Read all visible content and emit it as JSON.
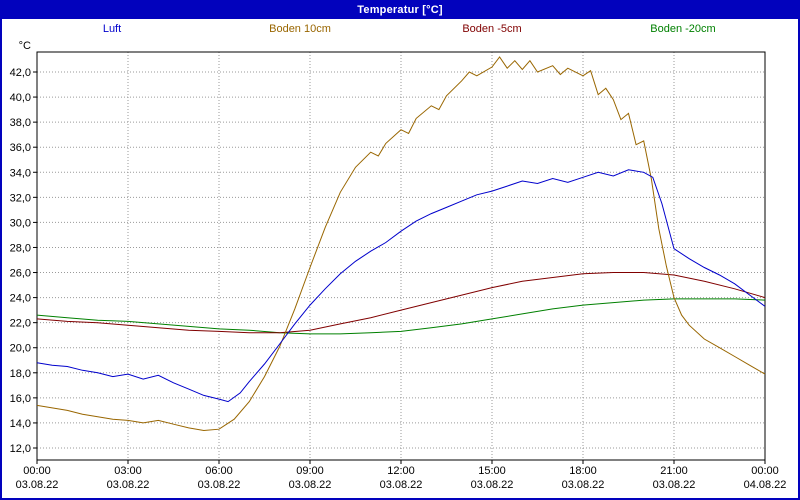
{
  "window_title": "Temperatur [°C]",
  "colors": {
    "frame_border": "#0202bd",
    "titlebar_bg": "#0202bd",
    "titlebar_text": "#ffffff",
    "plot_border": "#000000",
    "grid": "#9a9a9a",
    "background": "#ffffff"
  },
  "chart_data": {
    "type": "line",
    "title": "Temperatur [°C]",
    "legend_position": "top",
    "grid": {
      "style": "dotted",
      "color": "#9a9a9a"
    },
    "x_axis": {
      "unit": "hours",
      "range_hours": [
        0,
        24
      ],
      "tick_hours": [
        0,
        3,
        6,
        9,
        12,
        15,
        18,
        21,
        24
      ],
      "tick_labels": [
        "00:00",
        "03:00",
        "06:00",
        "09:00",
        "12:00",
        "15:00",
        "18:00",
        "21:00",
        "00:00"
      ],
      "date_labels": [
        "03.08.22",
        "03.08.22",
        "03.08.22",
        "03.08.22",
        "03.08.22",
        "03.08.22",
        "03.08.22",
        "03.08.22",
        "04.08.22"
      ]
    },
    "y_axis": {
      "label": "°C",
      "min": 12,
      "max": 42,
      "step": 2,
      "tick_labels": [
        "12,0",
        "14,0",
        "16,0",
        "18,0",
        "20,0",
        "22,0",
        "24,0",
        "26,0",
        "28,0",
        "30,0",
        "32,0",
        "34,0",
        "36,0",
        "38,0",
        "40,0",
        "42,0"
      ]
    },
    "series": [
      {
        "name": "Luft",
        "color": "#0000cc",
        "points": [
          [
            0,
            18.8
          ],
          [
            0.5,
            18.6
          ],
          [
            1,
            18.5
          ],
          [
            1.5,
            18.2
          ],
          [
            2,
            18.0
          ],
          [
            2.5,
            17.7
          ],
          [
            3,
            17.9
          ],
          [
            3.5,
            17.5
          ],
          [
            4,
            17.8
          ],
          [
            4.5,
            17.2
          ],
          [
            5,
            16.7
          ],
          [
            5.5,
            16.2
          ],
          [
            6,
            15.9
          ],
          [
            6.3,
            15.7
          ],
          [
            6.7,
            16.4
          ],
          [
            7,
            17.3
          ],
          [
            7.5,
            18.7
          ],
          [
            8,
            20.3
          ],
          [
            8.5,
            21.9
          ],
          [
            9,
            23.4
          ],
          [
            9.5,
            24.7
          ],
          [
            10,
            25.9
          ],
          [
            10.5,
            26.9
          ],
          [
            11,
            27.7
          ],
          [
            11.5,
            28.4
          ],
          [
            12,
            29.3
          ],
          [
            12.5,
            30.1
          ],
          [
            13,
            30.7
          ],
          [
            13.5,
            31.2
          ],
          [
            14,
            31.7
          ],
          [
            14.5,
            32.2
          ],
          [
            15,
            32.5
          ],
          [
            15.5,
            32.9
          ],
          [
            16,
            33.3
          ],
          [
            16.5,
            33.1
          ],
          [
            17,
            33.5
          ],
          [
            17.5,
            33.2
          ],
          [
            18,
            33.6
          ],
          [
            18.5,
            34.0
          ],
          [
            19,
            33.7
          ],
          [
            19.5,
            34.2
          ],
          [
            20,
            34.0
          ],
          [
            20.3,
            33.6
          ],
          [
            20.6,
            31.5
          ],
          [
            21,
            27.9
          ],
          [
            21.5,
            27.1
          ],
          [
            22,
            26.4
          ],
          [
            22.5,
            25.8
          ],
          [
            23,
            25.1
          ],
          [
            23.5,
            24.2
          ],
          [
            24,
            23.3
          ]
        ]
      },
      {
        "name": "Boden 10cm",
        "color": "#996600",
        "points": [
          [
            0,
            15.4
          ],
          [
            0.5,
            15.2
          ],
          [
            1,
            15.0
          ],
          [
            1.5,
            14.7
          ],
          [
            2,
            14.5
          ],
          [
            2.5,
            14.3
          ],
          [
            3,
            14.2
          ],
          [
            3.5,
            14.0
          ],
          [
            4,
            14.2
          ],
          [
            4.5,
            13.9
          ],
          [
            5,
            13.6
          ],
          [
            5.5,
            13.4
          ],
          [
            6,
            13.5
          ],
          [
            6.5,
            14.3
          ],
          [
            7,
            15.7
          ],
          [
            7.5,
            17.7
          ],
          [
            8,
            20.1
          ],
          [
            8.5,
            23.1
          ],
          [
            9,
            26.4
          ],
          [
            9.5,
            29.6
          ],
          [
            10,
            32.4
          ],
          [
            10.5,
            34.4
          ],
          [
            11,
            35.6
          ],
          [
            11.25,
            35.3
          ],
          [
            11.5,
            36.3
          ],
          [
            12,
            37.4
          ],
          [
            12.25,
            37.1
          ],
          [
            12.5,
            38.3
          ],
          [
            13,
            39.3
          ],
          [
            13.25,
            39.0
          ],
          [
            13.5,
            40.1
          ],
          [
            14,
            41.3
          ],
          [
            14.25,
            42.0
          ],
          [
            14.5,
            41.7
          ],
          [
            15,
            42.4
          ],
          [
            15.25,
            43.2
          ],
          [
            15.5,
            42.3
          ],
          [
            15.75,
            42.9
          ],
          [
            16,
            42.2
          ],
          [
            16.25,
            42.9
          ],
          [
            16.5,
            42.0
          ],
          [
            17,
            42.5
          ],
          [
            17.25,
            41.8
          ],
          [
            17.5,
            42.3
          ],
          [
            18,
            41.7
          ],
          [
            18.25,
            42.1
          ],
          [
            18.5,
            40.2
          ],
          [
            18.75,
            40.7
          ],
          [
            19,
            39.8
          ],
          [
            19.25,
            38.2
          ],
          [
            19.5,
            38.7
          ],
          [
            19.75,
            36.2
          ],
          [
            20,
            36.5
          ],
          [
            20.25,
            33.5
          ],
          [
            20.5,
            29.5
          ],
          [
            20.75,
            26.5
          ],
          [
            21,
            24.0
          ],
          [
            21.25,
            22.6
          ],
          [
            21.5,
            21.8
          ],
          [
            22,
            20.7
          ],
          [
            22.5,
            20.0
          ],
          [
            23,
            19.3
          ],
          [
            23.5,
            18.6
          ],
          [
            24,
            17.9
          ]
        ]
      },
      {
        "name": "Boden -5cm",
        "color": "#800000",
        "points": [
          [
            0,
            22.3
          ],
          [
            1,
            22.1
          ],
          [
            2,
            22.0
          ],
          [
            3,
            21.8
          ],
          [
            4,
            21.6
          ],
          [
            5,
            21.4
          ],
          [
            6,
            21.3
          ],
          [
            7,
            21.2
          ],
          [
            8,
            21.2
          ],
          [
            9,
            21.4
          ],
          [
            10,
            21.9
          ],
          [
            11,
            22.4
          ],
          [
            12,
            23.0
          ],
          [
            13,
            23.6
          ],
          [
            14,
            24.2
          ],
          [
            15,
            24.8
          ],
          [
            16,
            25.3
          ],
          [
            17,
            25.6
          ],
          [
            18,
            25.9
          ],
          [
            19,
            26.0
          ],
          [
            20,
            26.0
          ],
          [
            21,
            25.8
          ],
          [
            22,
            25.3
          ],
          [
            23,
            24.7
          ],
          [
            24,
            24.0
          ]
        ]
      },
      {
        "name": "Boden -20cm",
        "color": "#008000",
        "points": [
          [
            0,
            22.6
          ],
          [
            1,
            22.4
          ],
          [
            2,
            22.2
          ],
          [
            3,
            22.1
          ],
          [
            4,
            21.9
          ],
          [
            5,
            21.7
          ],
          [
            6,
            21.5
          ],
          [
            7,
            21.4
          ],
          [
            8,
            21.2
          ],
          [
            9,
            21.1
          ],
          [
            10,
            21.1
          ],
          [
            11,
            21.2
          ],
          [
            12,
            21.3
          ],
          [
            13,
            21.6
          ],
          [
            14,
            21.9
          ],
          [
            15,
            22.3
          ],
          [
            16,
            22.7
          ],
          [
            17,
            23.1
          ],
          [
            18,
            23.4
          ],
          [
            19,
            23.6
          ],
          [
            20,
            23.8
          ],
          [
            21,
            23.9
          ],
          [
            22,
            23.9
          ],
          [
            23,
            23.9
          ],
          [
            24,
            23.8
          ]
        ]
      }
    ]
  }
}
